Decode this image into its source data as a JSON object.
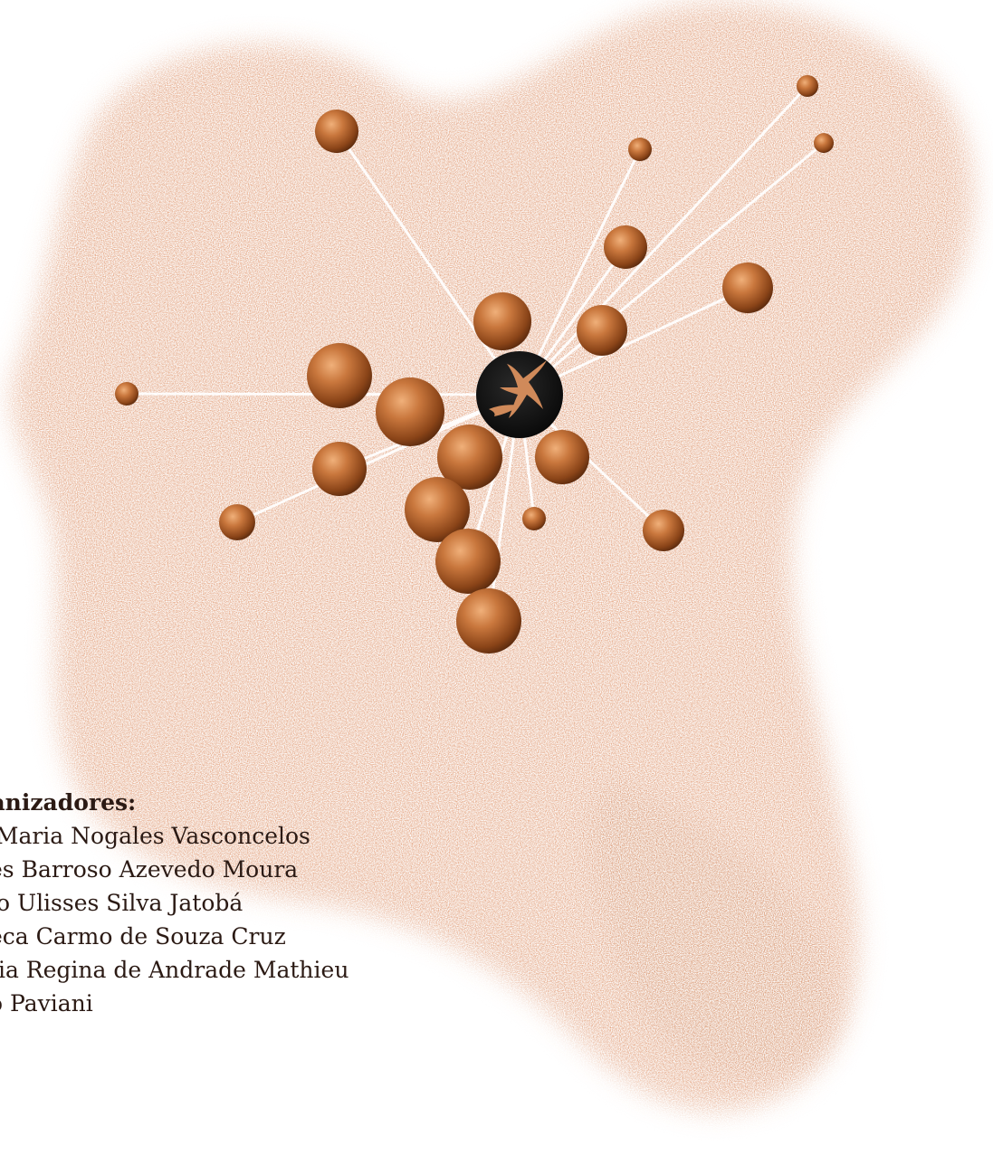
{
  "cover": {
    "organizers_heading": "ganizadores:",
    "organizers": [
      "a Maria Nogales Vasconcelos",
      "des Barroso Azevedo Moura",
      "gio Ulisses Silva Jatobá",
      "beca Carmo de Souza Cruz",
      "rcia Regina de Andrade Mathieu",
      "do Paviani"
    ]
  },
  "colors": {
    "cloud": "#d9865a",
    "sphere_light": "#e6a06b",
    "sphere_mid": "#b4622c",
    "sphere_dark": "#5a2a0e",
    "hub": "#141414",
    "logo": "#d08a5a",
    "link": "#ffffff",
    "text": "#2b1a14"
  },
  "icons": {
    "hub_logo": "leaping-figure-logo"
  }
}
